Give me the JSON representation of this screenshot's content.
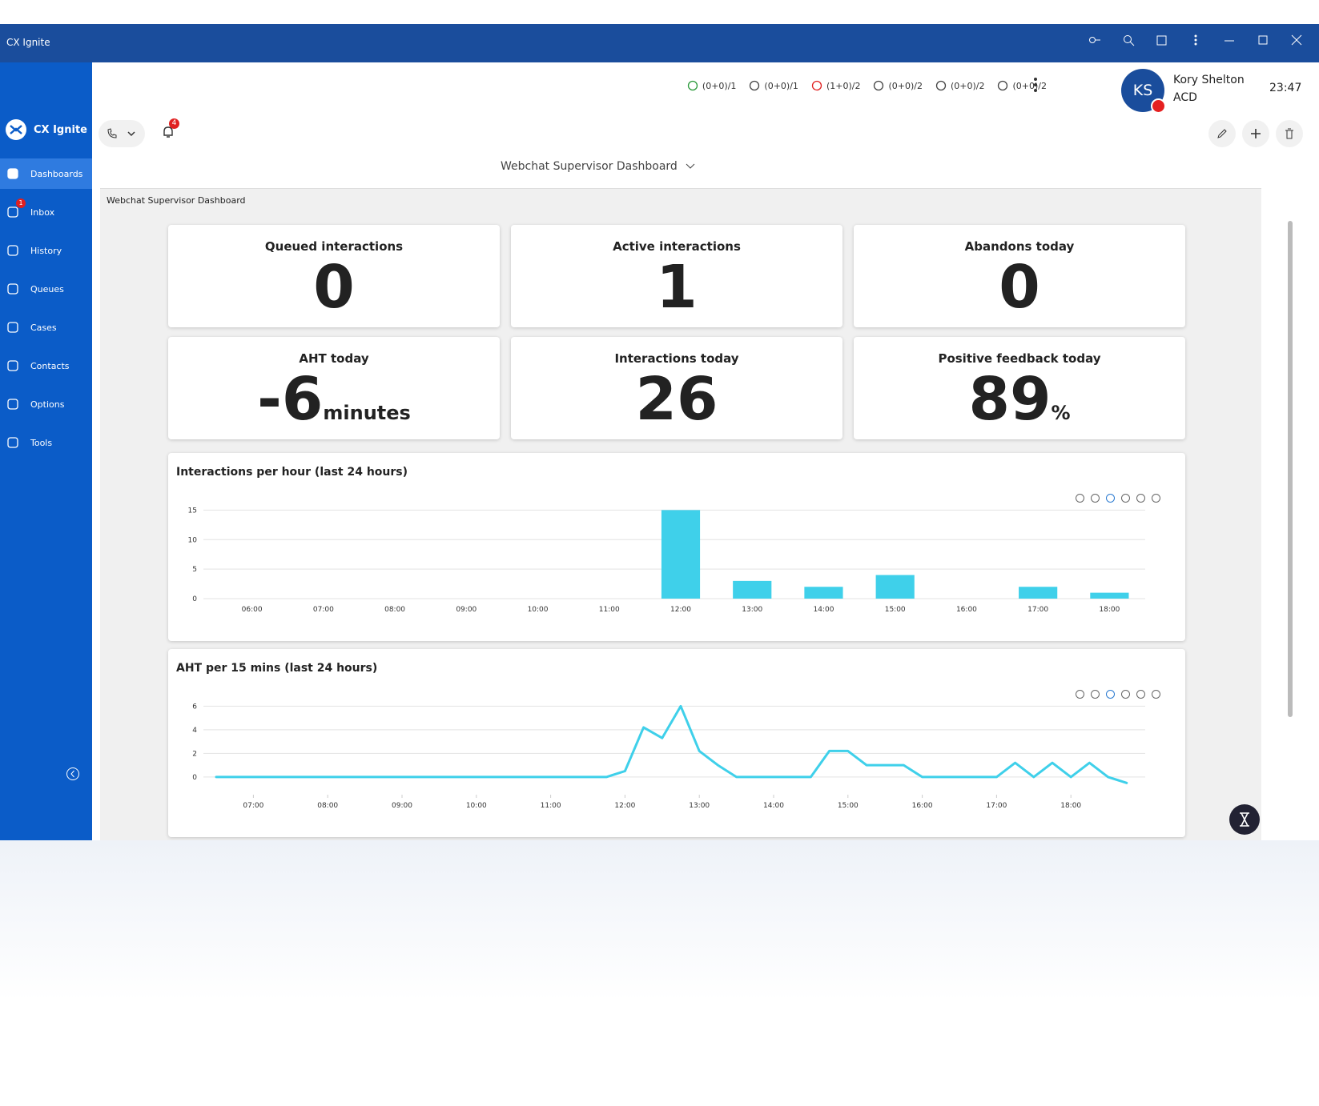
{
  "window": {
    "title": "CX Ignite"
  },
  "header": {
    "status_counters": [
      "(0+0)/1",
      "(0+0)/1",
      "(1+0)/2",
      "(0+0)/2",
      "(0+0)/2",
      "(0+0)/2"
    ],
    "user": {
      "initials": "KS",
      "name": "Kory Shelton",
      "role": "ACD"
    },
    "time": "23:47",
    "notification_count": 4
  },
  "sidebar": {
    "brand": "CX Ignite",
    "items": [
      {
        "label": "Dashboards",
        "active": true
      },
      {
        "label": "Inbox",
        "badge": 1
      },
      {
        "label": "History"
      },
      {
        "label": "Queues"
      },
      {
        "label": "Cases"
      },
      {
        "label": "Contacts"
      },
      {
        "label": "Options"
      },
      {
        "label": "Tools"
      }
    ]
  },
  "dashboard": {
    "selector": "Webchat Supervisor Dashboard",
    "panel_title": "Webchat Supervisor Dashboard",
    "kpis": [
      {
        "label": "Queued interactions",
        "value": 0
      },
      {
        "label": "Active interactions",
        "value": 1
      },
      {
        "label": "Abandons today",
        "value": 0
      },
      {
        "label": "AHT today",
        "value": -6,
        "unit": "minutes"
      },
      {
        "label": "Interactions today",
        "value": 26
      },
      {
        "label": "Positive feedback today",
        "value": 89,
        "unit": "%"
      }
    ]
  },
  "chart_data": [
    {
      "type": "bar",
      "title": "Interactions per hour (last 24 hours)",
      "categories": [
        "06:00",
        "07:00",
        "08:00",
        "09:00",
        "10:00",
        "11:00",
        "12:00",
        "13:00",
        "14:00",
        "15:00",
        "16:00",
        "17:00",
        "18:00"
      ],
      "values": [
        0,
        0,
        0,
        0,
        0,
        0,
        15,
        3,
        2,
        4,
        0,
        2,
        1
      ],
      "color": "#3fd0ea",
      "ylim": [
        0,
        16
      ],
      "yticks": [
        0,
        5,
        10,
        15
      ],
      "grid": true
    },
    {
      "type": "line",
      "title": "AHT per 15 mins (last 24 hours)",
      "x": [
        6.5,
        11.75,
        12.0,
        12.25,
        12.5,
        12.75,
        13.0,
        13.25,
        13.5,
        14.5,
        14.75,
        15.0,
        15.25,
        15.5,
        15.75,
        16.0,
        17.0,
        17.25,
        17.5,
        17.75,
        18.0,
        18.25,
        18.5,
        18.75
      ],
      "y": [
        0,
        0,
        0.5,
        4.2,
        3.3,
        6,
        2.2,
        1,
        0,
        0,
        2.2,
        2.2,
        1,
        1,
        1,
        0,
        0,
        1.2,
        0,
        1.2,
        0,
        1.2,
        0,
        -0.5
      ],
      "color": "#3fd0ea",
      "xlim": [
        6.5,
        19
      ],
      "xticks": [
        {
          "value": 7,
          "label": "07:00"
        },
        {
          "value": 8,
          "label": "08:00"
        },
        {
          "value": 9,
          "label": "09:00"
        },
        {
          "value": 10,
          "label": "10:00"
        },
        {
          "value": 11,
          "label": "11:00"
        },
        {
          "value": 12,
          "label": "12:00"
        },
        {
          "value": 13,
          "label": "13:00"
        },
        {
          "value": 14,
          "label": "14:00"
        },
        {
          "value": 15,
          "label": "15:00"
        },
        {
          "value": 16,
          "label": "16:00"
        },
        {
          "value": 17,
          "label": "17:00"
        },
        {
          "value": 18,
          "label": "18:00"
        }
      ],
      "ylim": [
        -1.5,
        6.5
      ],
      "yticks": [
        0,
        2,
        4,
        6
      ],
      "grid": true
    }
  ]
}
